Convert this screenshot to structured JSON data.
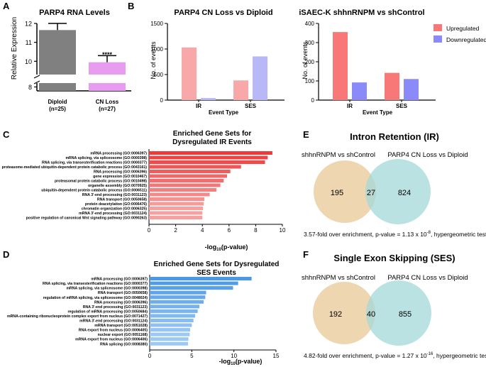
{
  "panel_labels": {
    "a": "A",
    "b": "B",
    "c": "C",
    "d": "D",
    "e": "E",
    "f": "F"
  },
  "colors": {
    "gray": "#808080",
    "pink_bar": "#e89cf0",
    "salmon": "#f8a8a8",
    "lavender": "#b8b8f8",
    "up_red": "#f87878",
    "down_blue": "#8a8af8",
    "ir_bar": "#ee3a3a",
    "ir_bar_light": "#f6a0a0",
    "ses_bar": "#4a98e6",
    "ses_bar_light": "#9cc8f4",
    "venn_left": "#e8cc9c",
    "venn_right": "#a4d8da"
  },
  "chart_data": [
    {
      "id": "A",
      "type": "bar",
      "title": "PARP4 RNA Levels",
      "ylabel": "Relative Expression",
      "categories": [
        "Diploid",
        "CN Loss"
      ],
      "sublabels": [
        "(n=25)",
        "(n=27)"
      ],
      "values": [
        11.65,
        9.95
      ],
      "errors": [
        0.35,
        0.35
      ],
      "ylim_upper": [
        9.3,
        12
      ],
      "ylim_lower": [
        7.7,
        8.3
      ],
      "yticks_upper": [
        "10",
        "11",
        "12"
      ],
      "ytick_values_upper": [
        10,
        11,
        12
      ],
      "ytick_lower": "8",
      "significance": "****",
      "colors": [
        "#808080",
        "#e89cf0"
      ]
    },
    {
      "id": "B1",
      "type": "bar",
      "title": "PARP4 CN Loss vs Diploid",
      "xlabel": "Event Type",
      "ylabel": "No. of events",
      "categories": [
        "IR",
        "SES"
      ],
      "series": [
        {
          "name": "Upregulated",
          "values": [
            1030,
            385
          ]
        },
        {
          "name": "Downregulated",
          "values": [
            40,
            855
          ]
        }
      ],
      "ylim": [
        0,
        1500
      ],
      "yticks": [
        "0",
        "500",
        "1000",
        "1500"
      ],
      "ytick_values": [
        0,
        500,
        1000,
        1500
      ]
    },
    {
      "id": "B2",
      "type": "bar",
      "title": "iSAEC-K shhnRNPM vs shControl",
      "xlabel": "Event Type",
      "ylabel": "No. of events",
      "categories": [
        "IR",
        "SES"
      ],
      "series": [
        {
          "name": "Upregulated",
          "values": [
            355,
            142
          ]
        },
        {
          "name": "Downregulated",
          "values": [
            92,
            110
          ]
        }
      ],
      "ylim": [
        0,
        400
      ],
      "yticks": [
        "0",
        "100",
        "200",
        "300",
        "400"
      ],
      "ytick_values": [
        0,
        100,
        200,
        300,
        400
      ],
      "legend": {
        "position": "top-right",
        "entries": [
          "Upregulated",
          "Downregulated"
        ]
      }
    },
    {
      "id": "C",
      "type": "bar",
      "orientation": "horizontal",
      "title": [
        "Enriched Gene Sets for",
        "Dysregulated IR Events"
      ],
      "xlabel_pre": "-log",
      "xlabel_sub": "10",
      "xlabel_post": "(p-value)",
      "xlim": [
        0,
        10
      ],
      "xticks": [
        "0",
        "2",
        "4",
        "6",
        "8",
        "10"
      ],
      "xtick_values": [
        0,
        2,
        4,
        6,
        8,
        10
      ],
      "categories": [
        "mRNA processing (GO:0006397)",
        "mRNA splicing, via spliceosome (GO:0000398)",
        "RNA splicing, via transesterification reactions (GO:0000377)",
        "proteasome-mediated ubiquitin-dependent protein catabolic process (GO:0043161)",
        "RNA processing (GO:0006396)",
        "gene expression (GO:0010467)",
        "proteasomal protein catabolic process (GO:0010498)",
        "organelle assembly (GO:0070925)",
        "ubiquitin-dependent protein catabolic process (GO:0006511)",
        "RNA 3'-end processing (GO:0031123)",
        "RNA transport (GO:0050658)",
        "protein deacetylation (GO:0006476)",
        "chromatin organization (GO:0006325)",
        "mRNA 3'-end processing (GO:0031124)",
        "positive regulation of canonical Wnt signaling pathway (GO:0090263)"
      ],
      "values": [
        9.25,
        8.9,
        8.7,
        6.9,
        6.1,
        5.85,
        5.6,
        5.35,
        5.05,
        4.55,
        4.15,
        4.1,
        4.05,
        4.0,
        4.0
      ]
    },
    {
      "id": "D",
      "type": "bar",
      "orientation": "horizontal",
      "title": [
        "Enriched Gene Sets for Dysregulated",
        "SES Events"
      ],
      "xlabel_pre": "-log",
      "xlabel_sub": "10",
      "xlabel_post": "(p-value)",
      "xlim": [
        0,
        15
      ],
      "xticks": [
        "0",
        "5",
        "10",
        "15"
      ],
      "xtick_values": [
        0,
        5,
        10,
        15
      ],
      "categories": [
        "mRNA processing (GO:0006397)",
        "RNA splicing, via transesterification reactions (GO:0000377)",
        "mRNA splicing, via spliceosome (GO:0000398)",
        "RNA transport (GO:0050658)",
        "regulation of mRNA splicing, via spliceosome (GO:0048024)",
        "RNA processing (GO:0006396)",
        "RNA 3'-end processing (GO:0031123)",
        "regulation of mRNA processing (GO:0050684)",
        "mRNA-containing ribonucleoprotein complex export from nucleus (GO:0071427)",
        "mRNA 3'-end processing (GO:0031124)",
        "mRNA transport (GO:0051028)",
        "RNA export from nucleus (GO:0006405)",
        "nuclear export (GO:0051168)",
        "mRNA export from nucleus (GO:0006406)",
        "RNA splicing (GO:0008380)"
      ],
      "values": [
        12.1,
        10.5,
        9.9,
        6.7,
        6.6,
        6.4,
        5.9,
        5.7,
        5.4,
        5.2,
        5.0,
        4.8,
        4.75,
        4.6,
        4.55
      ]
    }
  ],
  "venns": [
    {
      "id": "E",
      "title": "Intron Retention (IR)",
      "left_label": "shhnRNPM vs shControl",
      "right_label": "PARP4 CN Loss vs Diploid",
      "left_only": "195",
      "overlap": "27",
      "right_only": "824",
      "caption_pre": "3.57-fold over enrichment, p-value = 1.13 x 10",
      "caption_exp": "-8",
      "caption_post": ", hypergeometric test"
    },
    {
      "id": "F",
      "title": "Single Exon Skipping (SES)",
      "left_label": "shhnRNPM vs shControl",
      "right_label": "PARP4 CN Loss vs Diploid",
      "left_only": "192",
      "overlap": "40",
      "right_only": "855",
      "caption_pre": "4.82-fold over enrichment, p-value = 1.27 x 10",
      "caption_exp": "-16",
      "caption_post": ", hypergeometric test"
    }
  ]
}
